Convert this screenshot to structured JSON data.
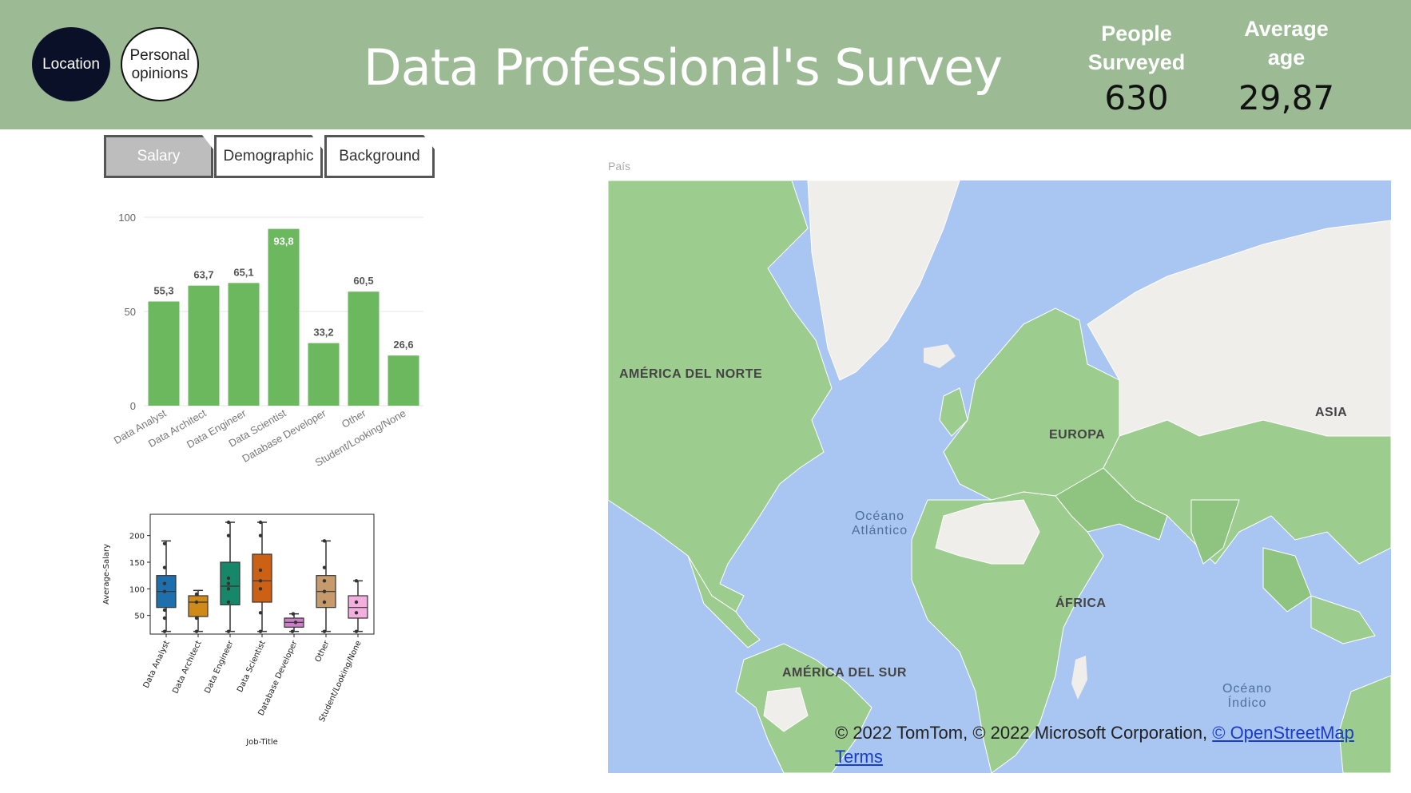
{
  "nav": {
    "location_label": "Location",
    "opinions_label": "Personal opinions"
  },
  "header": {
    "title": "Data Professional's Survey",
    "people_label": "People Surveyed",
    "people_value": "630",
    "age_label": "Average age",
    "age_value": "29,87"
  },
  "tabs": [
    {
      "label": "Salary",
      "active": true
    },
    {
      "label": "Demographic",
      "active": false
    },
    {
      "label": "Background",
      "active": false
    }
  ],
  "colors": {
    "header": "#9cbb94",
    "bar": "#6bb85f",
    "ocean": "#a9c6f2",
    "land": "#9ccc8e",
    "nodata": "#f0eeea"
  },
  "chart_data": [
    {
      "type": "bar",
      "categories": [
        "Data Analyst",
        "Data Architect",
        "Data Engineer",
        "Data Scientist",
        "Database Developer",
        "Other",
        "Student/Looking/None"
      ],
      "values": [
        55.3,
        63.7,
        65.1,
        93.8,
        33.2,
        60.5,
        26.6
      ],
      "value_labels": [
        "55,3",
        "63,7",
        "65,1",
        "93,8",
        "33,2",
        "60,5",
        "26,6"
      ],
      "yticks": [
        "0",
        "50",
        "100"
      ],
      "ylim": [
        0,
        100
      ],
      "grid": true
    },
    {
      "type": "box",
      "categories": [
        "Data Analyst",
        "Data Architect",
        "Data Engineer",
        "Data Scientist",
        "Database Developer",
        "Other",
        "Student/Looking/None"
      ],
      "xlabel": "Job-Title",
      "ylabel": "Average-Salary",
      "yticks": [
        "50",
        "100",
        "150",
        "200"
      ],
      "ylim": [
        15,
        240
      ],
      "colors": [
        "#1f6fad",
        "#d08a1a",
        "#17876a",
        "#cc6116",
        "#cc7fc6",
        "#c69a6b",
        "#f3b0de"
      ],
      "boxes": [
        {
          "whisker_low": 20,
          "q1": 65,
          "median": 95,
          "q3": 125,
          "whisker_high": 190,
          "points": [
            20,
            45,
            60,
            95,
            110,
            140,
            185
          ]
        },
        {
          "whisker_low": 20,
          "q1": 48,
          "median": 75,
          "q3": 87,
          "whisker_high": 97,
          "points": [
            20,
            45,
            75,
            90
          ]
        },
        {
          "whisker_low": 20,
          "q1": 70,
          "median": 105,
          "q3": 150,
          "whisker_high": 225,
          "points": [
            20,
            75,
            100,
            110,
            120,
            200,
            225
          ]
        },
        {
          "whisker_low": 20,
          "q1": 75,
          "median": 115,
          "q3": 165,
          "whisker_high": 225,
          "points": [
            20,
            55,
            100,
            115,
            135,
            200,
            225
          ]
        },
        {
          "whisker_low": 20,
          "q1": 28,
          "median": 37,
          "q3": 45,
          "whisker_high": 53,
          "points": [
            20,
            37,
            53
          ]
        },
        {
          "whisker_low": 20,
          "q1": 65,
          "median": 95,
          "q3": 125,
          "whisker_high": 190,
          "points": [
            20,
            75,
            95,
            115,
            140,
            190
          ]
        },
        {
          "whisker_low": 20,
          "q1": 45,
          "median": 65,
          "q3": 87,
          "whisker_high": 115,
          "points": [
            20,
            55,
            75,
            115
          ]
        }
      ]
    }
  ],
  "map": {
    "field_label": "País",
    "regions": [
      "AMÉRICA DEL NORTE",
      "EUROPA",
      "ASIA",
      "ÁFRICA",
      "AMÉRICA DEL SUR"
    ],
    "oceans": [
      "Océano Atlántico",
      "Océano Índico"
    ],
    "attribution": "© 2022 TomTom, © 2022 Microsoft Corporation,",
    "osm_link": "© OpenStreetMap",
    "terms_link": "Terms"
  }
}
